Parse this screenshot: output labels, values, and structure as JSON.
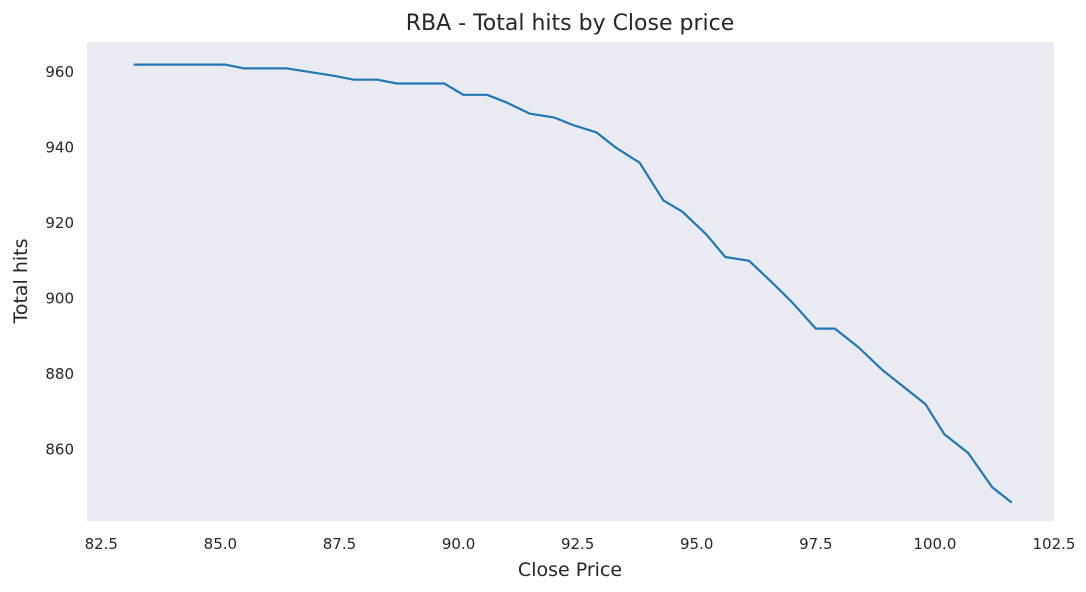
{
  "chart_data": {
    "type": "line",
    "title": "RBA - Total hits by Close price",
    "xlabel": "Close Price",
    "ylabel": "Total hits",
    "xlim": [
      82.2,
      102.5
    ],
    "ylim": [
      841,
      968
    ],
    "x_ticks": [
      "82.5",
      "85.0",
      "87.5",
      "90.0",
      "92.5",
      "95.0",
      "97.5",
      "100.0",
      "102.5"
    ],
    "x_tick_values": [
      82.5,
      85.0,
      87.5,
      90.0,
      92.5,
      95.0,
      97.5,
      100.0,
      102.5
    ],
    "y_ticks": [
      "860",
      "880",
      "900",
      "920",
      "940",
      "960"
    ],
    "y_tick_values": [
      860,
      880,
      900,
      920,
      940,
      960
    ],
    "grid": false,
    "background_color": "#eaeaf2",
    "series": [
      {
        "color": "#1f77b4",
        "x": [
          83.2,
          83.7,
          84.1,
          84.6,
          85.1,
          85.5,
          86.0,
          86.4,
          86.9,
          87.4,
          87.8,
          88.3,
          88.7,
          89.2,
          89.7,
          90.1,
          90.6,
          91.0,
          91.5,
          92.0,
          92.4,
          92.9,
          93.3,
          93.8,
          94.3,
          94.7,
          95.2,
          95.6,
          96.1,
          96.6,
          97.0,
          97.5,
          97.9,
          98.4,
          98.9,
          99.3,
          99.8,
          100.2,
          100.7,
          101.2,
          101.6
        ],
        "y": [
          962,
          962,
          962,
          962,
          962,
          961,
          961,
          961,
          960,
          959,
          958,
          958,
          957,
          957,
          957,
          954,
          954,
          952,
          949,
          948,
          946,
          944,
          940,
          936,
          926,
          923,
          917,
          911,
          910,
          904,
          899,
          892,
          892,
          887,
          881,
          877,
          872,
          864,
          859,
          850,
          846
        ]
      }
    ]
  }
}
